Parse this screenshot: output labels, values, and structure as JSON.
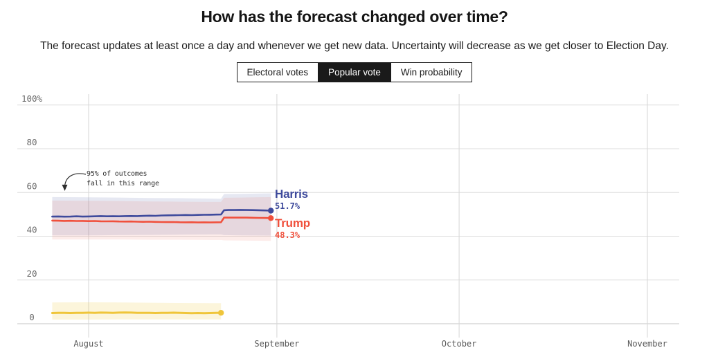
{
  "header": {
    "title": "How has the forecast changed over time?",
    "subtitle": "The forecast updates at least once a day and whenever we get new data. Uncertainty will decrease as we get closer to Election Day."
  },
  "tabs": {
    "active_index": 1,
    "active_bg": "#1a1a1a",
    "items": [
      {
        "label": "Electoral votes"
      },
      {
        "label": "Popular vote"
      },
      {
        "label": "Win probability"
      }
    ]
  },
  "annotation": {
    "text": "95% of outcomes\nfall in this range"
  },
  "chart_data": {
    "type": "line",
    "title": "How has the forecast changed over time?",
    "legend_position": "end-of-line labels",
    "grid": true,
    "y_axis": {
      "range": [
        0,
        100
      ],
      "unit": "%",
      "ticks": [
        {
          "v": 100,
          "label": "100%"
        },
        {
          "v": 80,
          "label": "80"
        },
        {
          "v": 60,
          "label": "60"
        },
        {
          "v": 40,
          "label": "40"
        },
        {
          "v": 20,
          "label": "20"
        },
        {
          "v": 0,
          "label": "0"
        }
      ]
    },
    "x_axis": {
      "unit": "days since Aug 1",
      "range_days": [
        -6.5,
        97
      ],
      "ticks": [
        {
          "day": 0,
          "label": "August"
        },
        {
          "day": 31,
          "label": "September"
        },
        {
          "day": 61,
          "label": "October"
        },
        {
          "day": 92,
          "label": "November"
        }
      ]
    },
    "series": [
      {
        "id": "harris",
        "label": "Harris",
        "end_value": "51.7%",
        "color": "#3e4a9c",
        "band_color": "rgba(62,74,156,0.13)",
        "width": 2.6,
        "points": [
          [
            -6,
            49.0
          ],
          [
            -5,
            49.05
          ],
          [
            -4,
            48.95
          ],
          [
            -3,
            49.0
          ],
          [
            -2,
            49.1
          ],
          [
            -1,
            49.0
          ],
          [
            0,
            49.05
          ],
          [
            1,
            49.1
          ],
          [
            2,
            49.2
          ],
          [
            3,
            49.1
          ],
          [
            4,
            49.15
          ],
          [
            5,
            49.1
          ],
          [
            6,
            49.2
          ],
          [
            7,
            49.25
          ],
          [
            8,
            49.2
          ],
          [
            9,
            49.3
          ],
          [
            10,
            49.4
          ],
          [
            11,
            49.35
          ],
          [
            12,
            49.5
          ],
          [
            13,
            49.55
          ],
          [
            14,
            49.6
          ],
          [
            15,
            49.65
          ],
          [
            16,
            49.7
          ],
          [
            17,
            49.65
          ],
          [
            18,
            49.75
          ],
          [
            19,
            49.8
          ],
          [
            20,
            49.85
          ],
          [
            21,
            49.9
          ],
          [
            21.8,
            49.95
          ],
          [
            22.3,
            51.9
          ],
          [
            23,
            52.0
          ],
          [
            24,
            52.0
          ],
          [
            25,
            52.05
          ],
          [
            26,
            52.0
          ],
          [
            27,
            51.95
          ],
          [
            28,
            51.9
          ],
          [
            29,
            51.8
          ],
          [
            30,
            51.7
          ]
        ],
        "band": [
          [
            -6,
            40.4,
            57.9
          ],
          [
            0,
            40.4,
            57.8
          ],
          [
            5,
            40.5,
            57.7
          ],
          [
            10,
            40.6,
            57.5
          ],
          [
            15,
            40.7,
            57.4
          ],
          [
            20,
            40.8,
            57.2
          ],
          [
            21.8,
            40.8,
            57.1
          ],
          [
            22.3,
            40.5,
            59.3
          ],
          [
            25,
            40.4,
            59.4
          ],
          [
            30,
            40.3,
            59.6
          ]
        ]
      },
      {
        "id": "trump",
        "label": "Trump",
        "end_value": "48.3%",
        "color": "#f0503c",
        "band_color": "rgba(240,80,60,0.11)",
        "width": 2.6,
        "points": [
          [
            -6,
            47.15
          ],
          [
            -5,
            47.1
          ],
          [
            -4,
            47.0
          ],
          [
            -3,
            47.05
          ],
          [
            -2,
            46.95
          ],
          [
            -1,
            47.0
          ],
          [
            0,
            46.9
          ],
          [
            1,
            46.95
          ],
          [
            2,
            46.85
          ],
          [
            3,
            46.8
          ],
          [
            4,
            46.85
          ],
          [
            5,
            46.75
          ],
          [
            6,
            46.7
          ],
          [
            7,
            46.75
          ],
          [
            8,
            46.65
          ],
          [
            9,
            46.6
          ],
          [
            10,
            46.65
          ],
          [
            11,
            46.55
          ],
          [
            12,
            46.5
          ],
          [
            13,
            46.45
          ],
          [
            14,
            46.5
          ],
          [
            15,
            46.4
          ],
          [
            16,
            46.35
          ],
          [
            17,
            46.4
          ],
          [
            18,
            46.3
          ],
          [
            19,
            46.35
          ],
          [
            20,
            46.3
          ],
          [
            21,
            46.35
          ],
          [
            21.8,
            46.4
          ],
          [
            22.3,
            48.5
          ],
          [
            23,
            48.55
          ],
          [
            24,
            48.5
          ],
          [
            25,
            48.55
          ],
          [
            26,
            48.5
          ],
          [
            27,
            48.45
          ],
          [
            28,
            48.4
          ],
          [
            29,
            48.35
          ],
          [
            30,
            48.3
          ]
        ],
        "band": [
          [
            -6,
            38.5,
            56.3
          ],
          [
            0,
            38.5,
            56.2
          ],
          [
            5,
            38.5,
            56.1
          ],
          [
            10,
            38.4,
            55.9
          ],
          [
            15,
            38.4,
            55.8
          ],
          [
            20,
            38.3,
            55.7
          ],
          [
            21.8,
            38.3,
            55.7
          ],
          [
            22.3,
            38.1,
            57.6
          ],
          [
            25,
            38.0,
            57.7
          ],
          [
            30,
            37.9,
            57.9
          ]
        ]
      },
      {
        "id": "third-party",
        "label": "",
        "color": "#efc53a",
        "band_color": "rgba(239,197,58,0.18)",
        "width": 3,
        "points": [
          [
            -6,
            4.9
          ],
          [
            -5,
            4.95
          ],
          [
            -4,
            5.0
          ],
          [
            -3,
            4.9
          ],
          [
            -2,
            4.95
          ],
          [
            -1,
            5.0
          ],
          [
            0,
            5.05
          ],
          [
            1,
            5.0
          ],
          [
            2,
            5.1
          ],
          [
            3,
            5.05
          ],
          [
            4,
            5.0
          ],
          [
            5,
            5.1
          ],
          [
            6,
            5.15
          ],
          [
            7,
            5.1
          ],
          [
            8,
            5.0
          ],
          [
            9,
            4.95
          ],
          [
            10,
            5.0
          ],
          [
            11,
            4.9
          ],
          [
            12,
            4.95
          ],
          [
            13,
            5.0
          ],
          [
            14,
            5.05
          ],
          [
            15,
            5.0
          ],
          [
            16,
            4.9
          ],
          [
            17,
            4.85
          ],
          [
            18,
            4.9
          ],
          [
            19,
            4.85
          ],
          [
            20,
            4.9
          ],
          [
            21,
            4.95
          ],
          [
            21.8,
            5.0
          ]
        ],
        "band": [
          [
            -6,
            1.9,
            9.7
          ],
          [
            0,
            1.9,
            9.8
          ],
          [
            5,
            2.0,
            9.7
          ],
          [
            10,
            2.0,
            9.6
          ],
          [
            15,
            2.0,
            9.5
          ],
          [
            20,
            2.0,
            9.4
          ],
          [
            21.8,
            2.0,
            9.4
          ]
        ]
      }
    ]
  }
}
